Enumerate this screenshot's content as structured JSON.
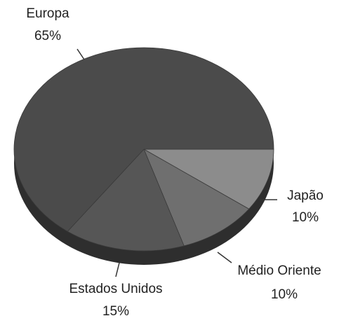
{
  "chart_data": {
    "type": "pie",
    "categories": [
      "Japão",
      "Médio Oriente",
      "Estados Unidos",
      "Europa"
    ],
    "values": [
      10,
      10,
      15,
      65
    ],
    "value_labels": [
      "10%",
      "10%",
      "15%",
      "65%"
    ],
    "colors": [
      "#8c8c8c",
      "#6f6f6f",
      "#565656",
      "#4b4b4b"
    ]
  }
}
